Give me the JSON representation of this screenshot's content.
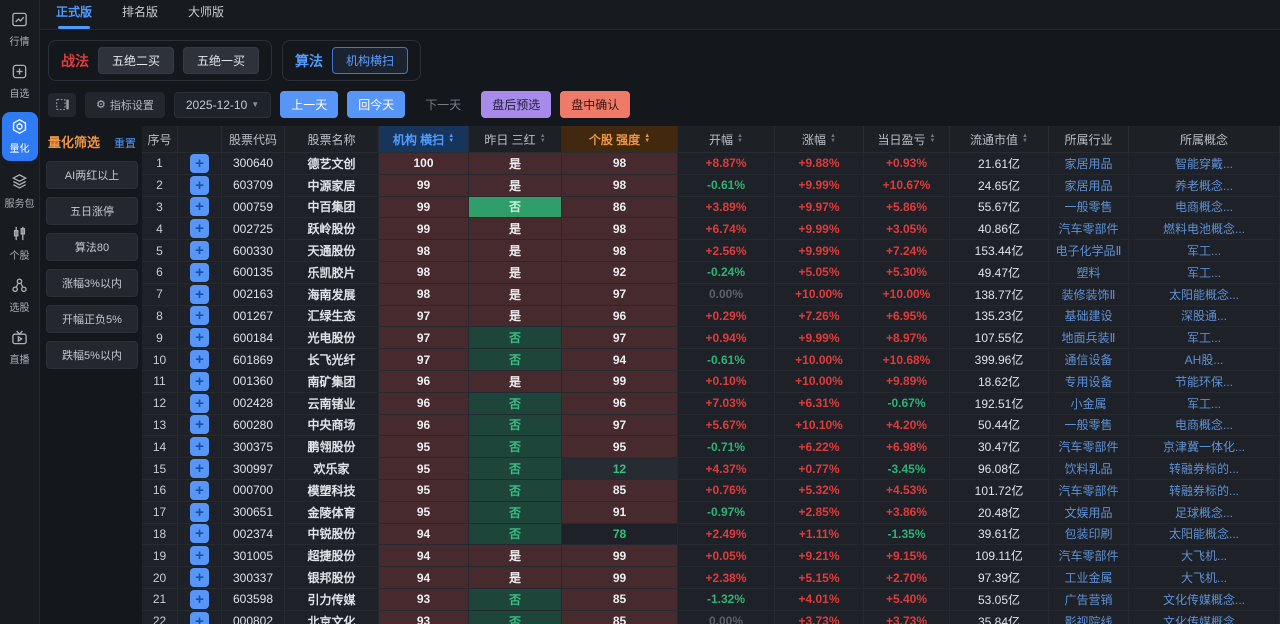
{
  "tabs": [
    {
      "label": "正式版",
      "active": true
    },
    {
      "label": "排名版",
      "active": false
    },
    {
      "label": "大师版",
      "active": false
    }
  ],
  "sidebar": {
    "items": [
      {
        "label": "行情",
        "icon": "market-chart-icon",
        "active": false
      },
      {
        "label": "自选",
        "icon": "watchlist-plus-icon",
        "active": false
      },
      {
        "label": "量化",
        "icon": "quant-hexagon-icon",
        "active": true
      },
      {
        "label": "服务包",
        "icon": "service-package-icon",
        "active": false
      },
      {
        "label": "个股",
        "icon": "candlestick-icon",
        "active": false
      },
      {
        "label": "选股",
        "icon": "stock-picker-icon",
        "active": false
      },
      {
        "label": "直播",
        "icon": "live-tv-icon",
        "active": false
      }
    ]
  },
  "strategy": {
    "label": "战法",
    "buttons": [
      "五绝二买",
      "五绝一买"
    ]
  },
  "algorithm": {
    "label": "算法",
    "buttons": [
      "机构横扫"
    ]
  },
  "toolbar": {
    "collapse_icon": "panel-toggle-icon",
    "indicator_settings": "指标设置",
    "gear_icon": "⚙",
    "date": "2025-12-10",
    "prev_day": "上一天",
    "back_today": "回今天",
    "next_day": "下一天",
    "post_market_presel": "盘后预选",
    "intraday_confirm": "盘中确认"
  },
  "filter": {
    "title": "量化筛选",
    "reset": "重置",
    "buttons": [
      "AI两红以上",
      "五日涨停",
      "算法80",
      "涨幅3%以内",
      "开幅正负5%",
      "跌幅5%以内"
    ]
  },
  "table": {
    "headers": [
      {
        "label": "序号",
        "sort": false
      },
      {
        "label": "",
        "sort": false
      },
      {
        "label": "股票代码",
        "sort": false
      },
      {
        "label": "股票名称",
        "sort": false
      },
      {
        "label": "机构 横扫",
        "sort": true,
        "style": "blue"
      },
      {
        "label": "昨日 三红",
        "sort": true
      },
      {
        "label": "个股 强度",
        "sort": true,
        "style": "orange"
      },
      {
        "label": "开幅",
        "sort": true
      },
      {
        "label": "涨幅",
        "sort": true
      },
      {
        "label": "当日盈亏",
        "sort": true
      },
      {
        "label": "流通市值",
        "sort": true
      },
      {
        "label": "所属行业",
        "sort": false
      },
      {
        "label": "所属概念",
        "sort": false
      }
    ],
    "rows": [
      {
        "no": 1,
        "code": "300640",
        "name": "德艺文创",
        "scan": 100,
        "three_red": "是",
        "three_style": "yes",
        "strength": 98,
        "strength_style": "high",
        "open": "+8.87%",
        "open_cls": "red",
        "chg": "+9.88%",
        "pnl": "+0.93%",
        "pnl_cls": "red",
        "mcap": "21.61亿",
        "industry": "家居用品",
        "concept": "智能穿戴..."
      },
      {
        "no": 2,
        "code": "603709",
        "name": "中源家居",
        "scan": 99,
        "three_red": "是",
        "three_style": "yes",
        "strength": 98,
        "strength_style": "high",
        "open": "-0.61%",
        "open_cls": "green",
        "chg": "+9.99%",
        "pnl": "+10.67%",
        "pnl_cls": "red",
        "mcap": "24.65亿",
        "industry": "家居用品",
        "concept": "养老概念..."
      },
      {
        "no": 3,
        "code": "000759",
        "name": "中百集团",
        "scan": 99,
        "three_red": "否",
        "three_style": "no_bright",
        "strength": 86,
        "strength_style": "high",
        "open": "+3.89%",
        "open_cls": "red",
        "chg": "+9.97%",
        "pnl": "+5.86%",
        "pnl_cls": "red",
        "mcap": "55.67亿",
        "industry": "一般零售",
        "concept": "电商概念..."
      },
      {
        "no": 4,
        "code": "002725",
        "name": "跃岭股份",
        "scan": 99,
        "three_red": "是",
        "three_style": "yes",
        "strength": 98,
        "strength_style": "high",
        "open": "+6.74%",
        "open_cls": "red",
        "chg": "+9.99%",
        "pnl": "+3.05%",
        "pnl_cls": "red",
        "mcap": "40.86亿",
        "industry": "汽车零部件",
        "concept": "燃料电池概念..."
      },
      {
        "no": 5,
        "code": "600330",
        "name": "天通股份",
        "scan": 98,
        "three_red": "是",
        "three_style": "yes",
        "strength": 98,
        "strength_style": "high",
        "open": "+2.56%",
        "open_cls": "red",
        "chg": "+9.99%",
        "pnl": "+7.24%",
        "pnl_cls": "red",
        "mcap": "153.44亿",
        "industry": "电子化学品Ⅱ",
        "concept": "军工..."
      },
      {
        "no": 6,
        "code": "600135",
        "name": "乐凯胶片",
        "scan": 98,
        "three_red": "是",
        "three_style": "yes",
        "strength": 92,
        "strength_style": "high",
        "open": "-0.24%",
        "open_cls": "green",
        "chg": "+5.05%",
        "pnl": "+5.30%",
        "pnl_cls": "red",
        "mcap": "49.47亿",
        "industry": "塑料",
        "concept": "军工..."
      },
      {
        "no": 7,
        "code": "002163",
        "name": "海南发展",
        "scan": 98,
        "three_red": "是",
        "three_style": "yes",
        "strength": 97,
        "strength_style": "high",
        "open": "0.00%",
        "open_cls": "gray",
        "chg": "+10.00%",
        "pnl": "+10.00%",
        "pnl_cls": "red",
        "mcap": "138.77亿",
        "industry": "装修装饰Ⅱ",
        "concept": "太阳能概念..."
      },
      {
        "no": 8,
        "code": "001267",
        "name": "汇绿生态",
        "scan": 97,
        "three_red": "是",
        "three_style": "yes",
        "strength": 96,
        "strength_style": "high",
        "open": "+0.29%",
        "open_cls": "red",
        "chg": "+7.26%",
        "pnl": "+6.95%",
        "pnl_cls": "red",
        "mcap": "135.23亿",
        "industry": "基础建设",
        "concept": "深股通..."
      },
      {
        "no": 9,
        "code": "600184",
        "name": "光电股份",
        "scan": 97,
        "three_red": "否",
        "three_style": "no",
        "strength": 97,
        "strength_style": "high",
        "open": "+0.94%",
        "open_cls": "red",
        "chg": "+9.99%",
        "pnl": "+8.97%",
        "pnl_cls": "red",
        "mcap": "107.55亿",
        "industry": "地面兵装Ⅱ",
        "concept": "军工..."
      },
      {
        "no": 10,
        "code": "601869",
        "name": "长飞光纤",
        "scan": 97,
        "three_red": "否",
        "three_style": "no",
        "strength": 94,
        "strength_style": "high",
        "open": "-0.61%",
        "open_cls": "green",
        "chg": "+10.00%",
        "pnl": "+10.68%",
        "pnl_cls": "red",
        "mcap": "399.96亿",
        "industry": "通信设备",
        "concept": "AH股..."
      },
      {
        "no": 11,
        "code": "001360",
        "name": "南矿集团",
        "scan": 96,
        "three_red": "是",
        "three_style": "yes",
        "strength": 99,
        "strength_style": "high",
        "open": "+0.10%",
        "open_cls": "red",
        "chg": "+10.00%",
        "pnl": "+9.89%",
        "pnl_cls": "red",
        "mcap": "18.62亿",
        "industry": "专用设备",
        "concept": "节能环保..."
      },
      {
        "no": 12,
        "code": "002428",
        "name": "云南锗业",
        "scan": 96,
        "three_red": "否",
        "three_style": "no",
        "strength": 96,
        "strength_style": "high",
        "open": "+7.03%",
        "open_cls": "red",
        "chg": "+6.31%",
        "pnl": "-0.67%",
        "pnl_cls": "green",
        "mcap": "192.51亿",
        "industry": "小金属",
        "concept": "军工..."
      },
      {
        "no": 13,
        "code": "600280",
        "name": "中央商场",
        "scan": 96,
        "three_red": "否",
        "three_style": "no",
        "strength": 97,
        "strength_style": "high",
        "open": "+5.67%",
        "open_cls": "red",
        "chg": "+10.10%",
        "pnl": "+4.20%",
        "pnl_cls": "red",
        "mcap": "50.44亿",
        "industry": "一般零售",
        "concept": "电商概念..."
      },
      {
        "no": 14,
        "code": "300375",
        "name": "鹏翎股份",
        "scan": 95,
        "three_red": "否",
        "three_style": "no",
        "strength": 95,
        "strength_style": "high",
        "open": "-0.71%",
        "open_cls": "green",
        "chg": "+6.22%",
        "pnl": "+6.98%",
        "pnl_cls": "red",
        "mcap": "30.47亿",
        "industry": "汽车零部件",
        "concept": "京津冀一体化..."
      },
      {
        "no": 15,
        "code": "300997",
        "name": "欢乐家",
        "scan": 95,
        "three_red": "否",
        "three_style": "no",
        "strength": 12,
        "strength_style": "low_hl",
        "open": "+4.37%",
        "open_cls": "red",
        "chg": "+0.77%",
        "pnl": "-3.45%",
        "pnl_cls": "green",
        "mcap": "96.08亿",
        "industry": "饮料乳品",
        "concept": "转融券标的..."
      },
      {
        "no": 16,
        "code": "000700",
        "name": "模塑科技",
        "scan": 95,
        "three_red": "否",
        "three_style": "no",
        "strength": 85,
        "strength_style": "high",
        "open": "+0.76%",
        "open_cls": "red",
        "chg": "+5.32%",
        "pnl": "+4.53%",
        "pnl_cls": "red",
        "mcap": "101.72亿",
        "industry": "汽车零部件",
        "concept": "转融券标的..."
      },
      {
        "no": 17,
        "code": "300651",
        "name": "金陵体育",
        "scan": 95,
        "three_red": "否",
        "three_style": "no",
        "strength": 91,
        "strength_style": "high",
        "open": "-0.97%",
        "open_cls": "green",
        "chg": "+2.85%",
        "pnl": "+3.86%",
        "pnl_cls": "red",
        "mcap": "20.48亿",
        "industry": "文娱用品",
        "concept": "足球概念..."
      },
      {
        "no": 18,
        "code": "002374",
        "name": "中锐股份",
        "scan": 94,
        "three_red": "否",
        "three_style": "no",
        "strength": 78,
        "strength_style": "low",
        "open": "+2.49%",
        "open_cls": "red",
        "chg": "+1.11%",
        "pnl": "-1.35%",
        "pnl_cls": "green",
        "mcap": "39.61亿",
        "industry": "包装印刷",
        "concept": "太阳能概念..."
      },
      {
        "no": 19,
        "code": "301005",
        "name": "超捷股份",
        "scan": 94,
        "three_red": "是",
        "three_style": "yes",
        "strength": 99,
        "strength_style": "high",
        "open": "+0.05%",
        "open_cls": "red",
        "chg": "+9.21%",
        "pnl": "+9.15%",
        "pnl_cls": "red",
        "mcap": "109.11亿",
        "industry": "汽车零部件",
        "concept": "大飞机..."
      },
      {
        "no": 20,
        "code": "300337",
        "name": "银邦股份",
        "scan": 94,
        "three_red": "是",
        "three_style": "yes",
        "strength": 99,
        "strength_style": "high",
        "open": "+2.38%",
        "open_cls": "red",
        "chg": "+5.15%",
        "pnl": "+2.70%",
        "pnl_cls": "red",
        "mcap": "97.39亿",
        "industry": "工业金属",
        "concept": "大飞机..."
      },
      {
        "no": 21,
        "code": "603598",
        "name": "引力传媒",
        "scan": 93,
        "three_red": "否",
        "three_style": "no",
        "strength": 85,
        "strength_style": "high",
        "open": "-1.32%",
        "open_cls": "green",
        "chg": "+4.01%",
        "pnl": "+5.40%",
        "pnl_cls": "red",
        "mcap": "53.05亿",
        "industry": "广告营销",
        "concept": "文化传媒概念..."
      },
      {
        "no": 22,
        "code": "000802",
        "name": "北京文化",
        "scan": 93,
        "three_red": "否",
        "three_style": "no",
        "strength": 85,
        "strength_style": "high",
        "open": "0.00%",
        "open_cls": "gray",
        "chg": "+3.73%",
        "pnl": "+3.73%",
        "pnl_cls": "red",
        "mcap": "35.84亿",
        "industry": "影视院线",
        "concept": "文化传媒概念..."
      }
    ]
  },
  "colors": {
    "accent_blue": "#4e9aff",
    "up_red": "#e03b3b",
    "down_green": "#2eb377",
    "scan_cell_bg": "#472a2e",
    "no_cell_bg": "#1d453a",
    "strength_header": "#ee9441",
    "purple_btn": "#a78bea",
    "salmon_btn": "#ef7a68"
  }
}
